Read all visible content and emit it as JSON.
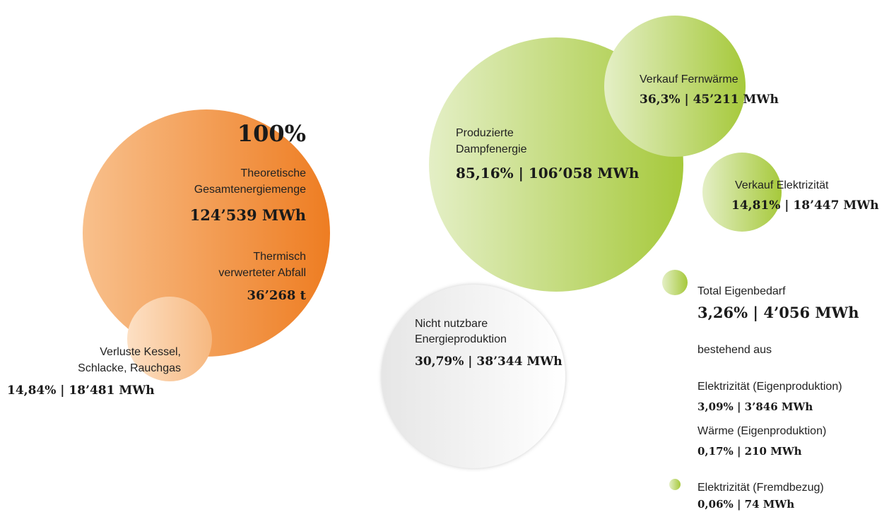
{
  "total": {
    "percent": "100%",
    "label": [
      "Theoretische",
      "Gesamtenergiemenge"
    ],
    "amount": "124’539 MWh",
    "waste_label": [
      "Thermisch",
      "verwerteter Abfall"
    ],
    "waste_amount": "36’268 t"
  },
  "losses": {
    "label": [
      "Verluste Kessel,",
      "Schlacke, Rauchgas"
    ],
    "value": "14,84% | 18’481 MWh"
  },
  "steam": {
    "label": [
      "Produzierte",
      "Dampfenergie"
    ],
    "value": "85,16% | 106’058 MWh"
  },
  "heat_sale": {
    "label": "Verkauf Fernwärme",
    "value": "36,3% | 45’211 MWh"
  },
  "power_sale": {
    "label": "Verkauf Elektrizität",
    "value": "14,81% | 18’447 MWh"
  },
  "unusable": {
    "label": [
      "Nicht nutzbare",
      "Energieproduktion"
    ],
    "value": "30,79% | 38’344 MWh"
  },
  "own_use": {
    "label": "Total Eigenbedarf",
    "value": "3,26% | 4’056 MWh",
    "note": "bestehend aus",
    "items": [
      {
        "label": "Elektrizität (Eigenproduktion)",
        "value": "3,09% | 3’846 MWh"
      },
      {
        "label": "Wärme (Eigenproduktion)",
        "value": "0,17% | 210 MWh"
      },
      {
        "label": "Elektrizität (Fremdbezug)",
        "value": "0,06% | 74 MWh"
      }
    ]
  }
}
